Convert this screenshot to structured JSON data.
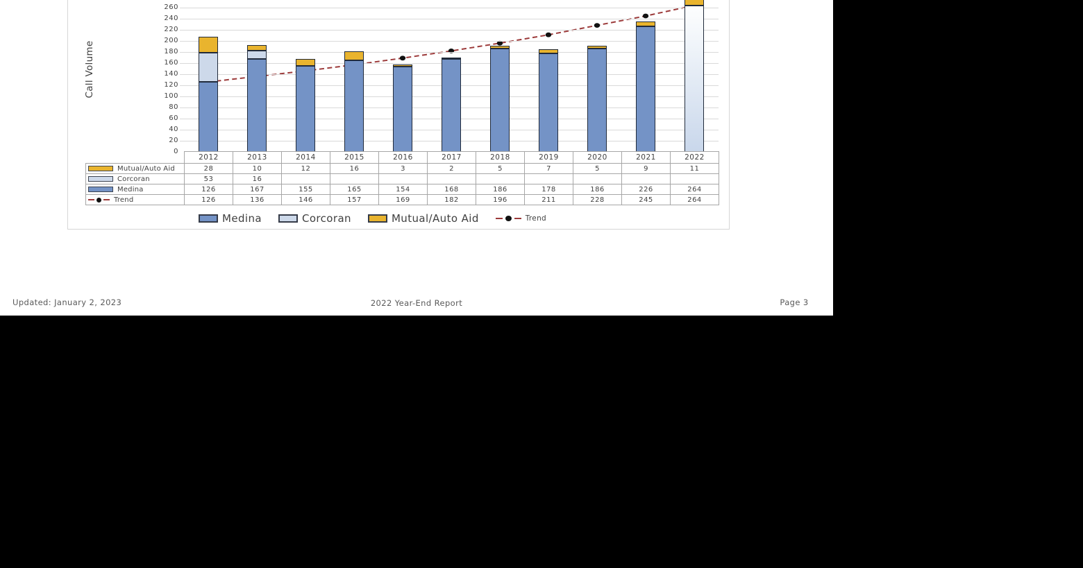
{
  "page": {
    "footer": {
      "updated": "Updated: January 2, 2023",
      "center": "2022 Year-End Report",
      "page_number": "Page 3"
    }
  },
  "chart_data": {
    "type": "bar",
    "stacked": true,
    "title": "",
    "xlabel": "",
    "ylabel": "Call Volume",
    "ylim": [
      0,
      280
    ],
    "ytick_step": 20,
    "ymax_visible_label": 260,
    "grid": true,
    "legend_position": "bottom",
    "categories": [
      "2012",
      "2013",
      "2014",
      "2015",
      "2016",
      "2017",
      "2018",
      "2019",
      "2020",
      "2021",
      "2022"
    ],
    "series": [
      {
        "name": "Medina",
        "color": "#7493c6",
        "values": [
          126,
          167,
          155,
          165,
          154,
          168,
          186,
          178,
          186,
          226,
          264
        ]
      },
      {
        "name": "Corcoran",
        "color": "#cdd9ea",
        "values": [
          53,
          16,
          null,
          null,
          null,
          null,
          null,
          null,
          null,
          null,
          null
        ]
      },
      {
        "name": "Mutual/Auto Aid",
        "color": "#e9b42e",
        "values": [
          28,
          10,
          12,
          16,
          3,
          2,
          5,
          7,
          5,
          9,
          11
        ]
      }
    ],
    "trend": {
      "name": "Trend",
      "color": "#9c3a3a",
      "marker_color": "#111111",
      "values": [
        126,
        136,
        146,
        157,
        169,
        182,
        196,
        211,
        228,
        245,
        264
      ]
    },
    "gradient_series": "Medina",
    "gradient_bars": [
      "2022"
    ],
    "colors": {
      "bar_border": "#202a3a",
      "gridline": "#d9d9d9",
      "table_border": "#a6a6a6",
      "text": "#3f3f3f"
    }
  },
  "table": {
    "row_order": [
      "Mutual/Auto Aid",
      "Corcoran",
      "Medina",
      "Trend"
    ]
  },
  "legend": {
    "items": [
      "Medina",
      "Corcoran",
      "Mutual/Auto Aid",
      "Trend"
    ]
  }
}
